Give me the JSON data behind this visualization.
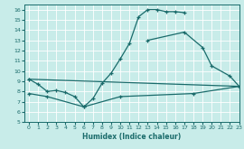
{
  "xlabel": "Humidex (Indice chaleur)",
  "xlim": [
    -0.5,
    23
  ],
  "ylim": [
    5,
    16.5
  ],
  "xticks": [
    0,
    1,
    2,
    3,
    4,
    5,
    6,
    7,
    8,
    9,
    10,
    11,
    12,
    13,
    14,
    15,
    16,
    17,
    18,
    19,
    20,
    21,
    22,
    23
  ],
  "yticks": [
    5,
    6,
    7,
    8,
    9,
    10,
    11,
    12,
    13,
    14,
    15,
    16
  ],
  "bg_color": "#c8ece9",
  "line_color": "#1a6b6b",
  "grid_color": "#b8ddd9",
  "line1_x": [
    0,
    1,
    2,
    3,
    4,
    5,
    6,
    7,
    8,
    9,
    10,
    11,
    12,
    13,
    14,
    15,
    16,
    17
  ],
  "line1_y": [
    9.2,
    8.7,
    8.0,
    8.1,
    7.9,
    7.5,
    6.5,
    7.3,
    8.8,
    9.8,
    11.2,
    12.7,
    15.3,
    16.0,
    16.0,
    15.8,
    15.8,
    15.7
  ],
  "line2_x": [
    13,
    17,
    19,
    20,
    22,
    23
  ],
  "line2_y": [
    13.0,
    13.8,
    12.3,
    10.5,
    9.5,
    8.5
  ],
  "line3_x": [
    0,
    23
  ],
  "line3_y": [
    9.2,
    8.5
  ],
  "line4_x": [
    0,
    2,
    6,
    10,
    18,
    23
  ],
  "line4_y": [
    7.8,
    7.5,
    6.5,
    7.5,
    7.8,
    8.5
  ]
}
